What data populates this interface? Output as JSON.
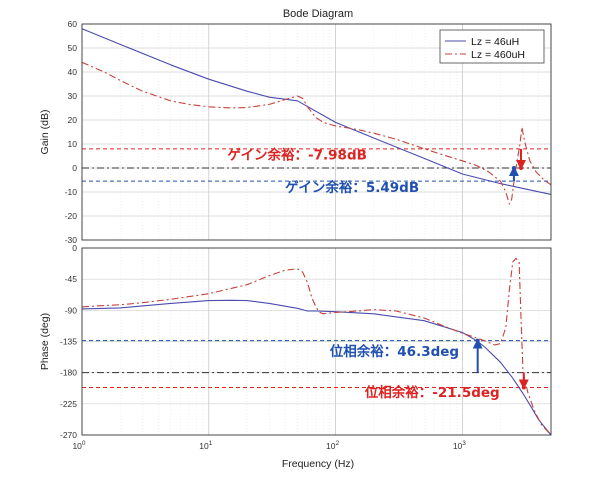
{
  "chart_data": {
    "type": "line",
    "title": "Bode Diagram",
    "xlabel": "Frequency  (Hz)",
    "xscale": "log",
    "xlim": [
      1,
      5000
    ],
    "x_tick_labels": [
      "10^0",
      "10^1",
      "10^2",
      "10^3"
    ],
    "grid": true,
    "legend": {
      "placement": "top-right",
      "entries": [
        "Lz = 46uH",
        "Lz = 460uH"
      ]
    },
    "colors": {
      "lz46": "#4b4bb0",
      "lz460": "#c8413c",
      "gm_red": "#dd2222",
      "gm_blue": "#2050b0",
      "ref": "#333333"
    },
    "panels": [
      {
        "name": "gain",
        "ylabel": "Gain (dB)",
        "ylim": [
          -30,
          60
        ],
        "y_ticks": [
          -30,
          -20,
          -10,
          0,
          10,
          20,
          30,
          40,
          50,
          60
        ],
        "series": [
          {
            "name": "Lz = 46uH",
            "style": "solid",
            "x": [
              1,
              2,
              5,
              10,
              20,
              30,
              50,
              100,
              200,
              500,
              1000,
              2000,
              3000,
              5000
            ],
            "y": [
              58,
              51.5,
              43,
              37,
              32,
              29.5,
              28,
              19,
              12.5,
              4,
              -2.5,
              -6.5,
              -8.5,
              -11
            ]
          },
          {
            "name": "Lz = 460uH",
            "style": "dashdot",
            "x": [
              1,
              1.5,
              2,
              3,
              5,
              7,
              10,
              15,
              20,
              30,
              40,
              50,
              55,
              60,
              70,
              80,
              100,
              150,
              200,
              300,
              500,
              700,
              1000,
              1300,
              1600,
              2000,
              2200,
              2350,
              2450,
              2550,
              2700,
              2850,
              2950,
              3100,
              3400,
              3800,
              4400,
              5000
            ],
            "y": [
              44,
              40,
              36.5,
              32,
              28,
              26.5,
              25.5,
              25,
              25.2,
              26.5,
              28.5,
              30,
              29,
              25.5,
              21,
              19,
              17.5,
              16,
              14.5,
              12,
              8,
              5.5,
              3,
              1,
              -1.5,
              -5.5,
              -10,
              -15,
              -13,
              -6,
              3,
              10,
              17,
              11,
              3,
              -1.5,
              -5,
              -7
            ]
          }
        ],
        "reference_lines": [
          {
            "y": 7.98,
            "color": "#dd2222",
            "style": "dashed"
          },
          {
            "y": 0,
            "color": "#333333",
            "style": "dashdot"
          },
          {
            "y": -5.49,
            "color": "#2050b0",
            "style": "dashed"
          }
        ],
        "annotations": [
          {
            "text": "ゲイン余裕：-7.98dB",
            "color": "#dd2222",
            "arrow_x": 2900,
            "arrow_from": 7.98,
            "arrow_to": 0,
            "text_x": 14,
            "text_y": 3.5
          },
          {
            "text": "ゲイン余裕：5.49dB",
            "color": "#2050b0",
            "arrow_x": 2550,
            "arrow_from": -5.49,
            "arrow_to": 0,
            "text_x": 40,
            "text_y": -10
          }
        ]
      },
      {
        "name": "phase",
        "ylabel": "Phase (deg)",
        "ylim": [
          -270,
          0
        ],
        "y_ticks": [
          -270,
          -225,
          -180,
          -135,
          -90,
          -45,
          0
        ],
        "series": [
          {
            "name": "Lz = 46uH",
            "style": "solid",
            "x": [
              1,
              2,
              5,
              10,
              15,
              20,
              30,
              50,
              60,
              70,
              100,
              200,
              500,
              1000,
              1300,
              1500,
              2000,
              2500,
              3000,
              3500,
              4000,
              5000
            ],
            "y": [
              -88,
              -86.5,
              -80,
              -76,
              -75.5,
              -76,
              -80,
              -87,
              -91,
              -91,
              -92,
              -95,
              -105,
              -122,
              -134,
              -143,
              -165,
              -188,
              -210,
              -230,
              -248,
              -270
            ]
          },
          {
            "name": "Lz = 460uH",
            "style": "dashdot",
            "x": [
              1,
              1.5,
              2,
              3,
              5,
              10,
              20,
              30,
              40,
              50,
              55,
              60,
              65,
              70,
              75,
              80,
              100,
              150,
              200,
              300,
              500,
              700,
              1000,
              1300,
              1500,
              1800,
              2000,
              2200,
              2350,
              2500,
              2650,
              2800,
              2900,
              3000,
              3100,
              3300,
              3700,
              4200,
              5000
            ],
            "y": [
              -85,
              -83,
              -82,
              -79,
              -74,
              -66,
              -53,
              -40,
              -32,
              -30,
              -35,
              -50,
              -72,
              -85,
              -93,
              -95,
              -93,
              -91,
              -89,
              -91,
              -101,
              -112,
              -123,
              -130,
              -134,
              -140,
              -138,
              -115,
              -60,
              -20,
              -15,
              -20,
              -100,
              -175,
              -190,
              -210,
              -235,
              -255,
              -270
            ]
          }
        ],
        "reference_lines": [
          {
            "y": -133.7,
            "color": "#2050b0",
            "style": "dashed"
          },
          {
            "y": -180,
            "color": "#333333",
            "style": "dashdot"
          },
          {
            "y": -201.5,
            "color": "#dd2222",
            "style": "dashed"
          }
        ],
        "annotations": [
          {
            "text": "位相余裕：46.3deg",
            "color": "#2050b0",
            "arrow_x": 1320,
            "arrow_from": -180,
            "arrow_to": -133.7,
            "text_x": 90,
            "text_y": -156
          },
          {
            "text": "位相余裕：-21.5deg",
            "color": "#dd2222",
            "arrow_x": 3050,
            "arrow_from": -180,
            "arrow_to": -201.5,
            "text_x": 170,
            "text_y": -215
          }
        ]
      }
    ]
  }
}
